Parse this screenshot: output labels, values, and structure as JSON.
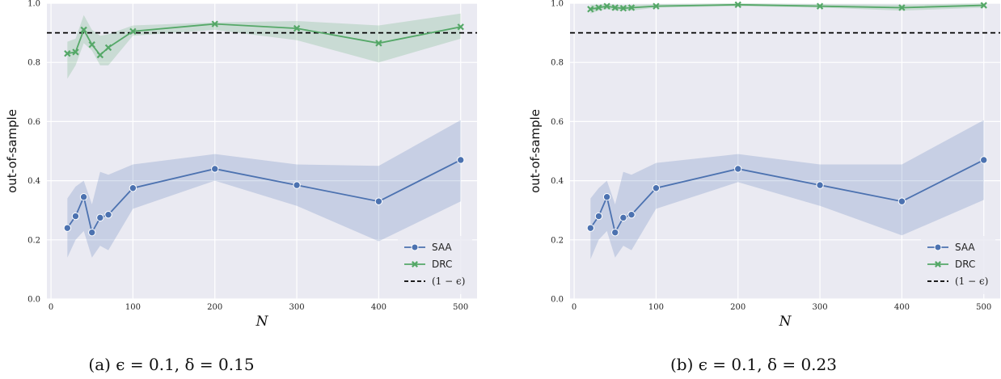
{
  "chart_data": [
    {
      "type": "line",
      "caption": "(a) ϵ = 0.1, δ = 0.15",
      "xlabel": "N",
      "ylabel": "out-of-sample",
      "xlim": [
        -5,
        520
      ],
      "ylim": [
        0.0,
        1.0
      ],
      "xticks": [
        0,
        100,
        200,
        300,
        400,
        500
      ],
      "yticks": [
        0.0,
        0.2,
        0.4,
        0.6,
        0.8,
        1.0
      ],
      "grid": true,
      "legend_position": "lower-right",
      "hline": {
        "name": "(1 − ϵ)",
        "y": 0.9,
        "color": "#000000",
        "style": "dashed"
      },
      "x": [
        20,
        30,
        40,
        50,
        60,
        70,
        100,
        200,
        300,
        400,
        500
      ],
      "series": [
        {
          "name": "SAA",
          "color": "#4c72b0",
          "marker": "circle",
          "values": [
            0.24,
            0.28,
            0.345,
            0.225,
            0.275,
            0.285,
            0.375,
            0.44,
            0.385,
            0.33,
            0.47
          ],
          "band_low": [
            0.14,
            0.2,
            0.23,
            0.14,
            0.18,
            0.165,
            0.305,
            0.4,
            0.315,
            0.195,
            0.33
          ],
          "band_high": [
            0.34,
            0.38,
            0.4,
            0.32,
            0.43,
            0.42,
            0.455,
            0.49,
            0.455,
            0.45,
            0.605
          ]
        },
        {
          "name": "DRC",
          "color": "#55a868",
          "marker": "x",
          "values": [
            0.83,
            0.835,
            0.91,
            0.86,
            0.825,
            0.85,
            0.905,
            0.93,
            0.915,
            0.865,
            0.92
          ],
          "band_low": [
            0.745,
            0.79,
            0.865,
            0.84,
            0.79,
            0.79,
            0.89,
            0.91,
            0.875,
            0.8,
            0.88
          ],
          "band_high": [
            0.87,
            0.88,
            0.96,
            0.91,
            0.89,
            0.895,
            0.925,
            0.935,
            0.94,
            0.925,
            0.965
          ]
        }
      ]
    },
    {
      "type": "line",
      "caption": "(b) ϵ = 0.1, δ = 0.23",
      "xlabel": "N",
      "ylabel": "out-of-sample",
      "xlim": [
        -5,
        520
      ],
      "ylim": [
        0.0,
        1.0
      ],
      "xticks": [
        0,
        100,
        200,
        300,
        400,
        500
      ],
      "yticks": [
        0.0,
        0.2,
        0.4,
        0.6,
        0.8,
        1.0
      ],
      "grid": true,
      "legend_position": "lower-right",
      "hline": {
        "name": "(1 − ϵ)",
        "y": 0.9,
        "color": "#000000",
        "style": "dashed"
      },
      "x": [
        20,
        30,
        40,
        50,
        60,
        70,
        100,
        200,
        300,
        400,
        500
      ],
      "series": [
        {
          "name": "SAA",
          "color": "#4c72b0",
          "marker": "circle",
          "values": [
            0.24,
            0.28,
            0.345,
            0.225,
            0.275,
            0.285,
            0.375,
            0.44,
            0.385,
            0.33,
            0.47
          ],
          "band_low": [
            0.135,
            0.2,
            0.23,
            0.14,
            0.18,
            0.165,
            0.305,
            0.395,
            0.315,
            0.215,
            0.335
          ],
          "band_high": [
            0.34,
            0.375,
            0.4,
            0.32,
            0.43,
            0.42,
            0.46,
            0.49,
            0.455,
            0.455,
            0.605
          ]
        },
        {
          "name": "DRC",
          "color": "#55a868",
          "marker": "x",
          "values": [
            0.98,
            0.985,
            0.99,
            0.985,
            0.983,
            0.985,
            0.99,
            0.995,
            0.99,
            0.985,
            0.993
          ],
          "band_low": [
            0.965,
            0.975,
            0.98,
            0.975,
            0.975,
            0.975,
            0.985,
            0.99,
            0.985,
            0.975,
            0.985
          ],
          "band_high": [
            0.995,
            0.995,
            0.998,
            0.995,
            0.993,
            0.995,
            0.997,
            1.0,
            0.997,
            0.995,
            1.0
          ]
        }
      ]
    }
  ]
}
